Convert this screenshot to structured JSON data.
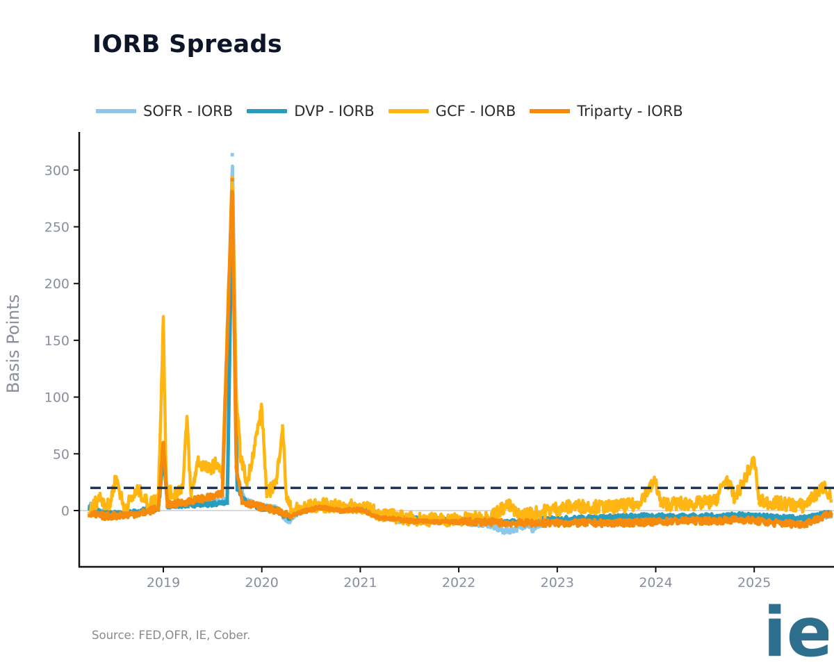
{
  "title": "IORB Spreads",
  "source": "Source: FED,OFR, IE, Cober.",
  "colors": {
    "sofr": "#8ec8e8",
    "dvp": "#2a9dbd",
    "gcf": "#ffb612",
    "triparty": "#f58a0c",
    "threshold": "#1f3556",
    "zero": "#d9d9d9",
    "logo": "#2f6f8e"
  },
  "logo": {
    "text": "ie"
  },
  "legend": [
    {
      "label": "SOFR - IORB",
      "key": "sofr"
    },
    {
      "label": "DVP - IORB",
      "key": "dvp"
    },
    {
      "label": "GCF - IORB",
      "key": "gcf"
    },
    {
      "label": "Triparty - IORB",
      "key": "triparty"
    }
  ],
  "chart_data": {
    "type": "line",
    "title": "IORB Spreads",
    "xlabel": "",
    "ylabel": "Basis Points",
    "xlim": [
      2018.15,
      2025.78
    ],
    "ylim": [
      -50,
      335
    ],
    "yticks": [
      0,
      50,
      100,
      150,
      200,
      250,
      300
    ],
    "xticks": [
      2019,
      2020,
      2021,
      2022,
      2023,
      2024,
      2025
    ],
    "threshold": 20,
    "grid": false,
    "legend_position": "top",
    "series": [
      {
        "name": "SOFR - IORB",
        "key": "sofr",
        "points": [
          [
            2018.25,
            5
          ],
          [
            2018.4,
            -3
          ],
          [
            2018.6,
            -4
          ],
          [
            2018.8,
            -1
          ],
          [
            2018.95,
            3
          ],
          [
            2019.0,
            55
          ],
          [
            2019.05,
            5
          ],
          [
            2019.25,
            6
          ],
          [
            2019.5,
            7
          ],
          [
            2019.65,
            10
          ],
          [
            2019.7,
            315
          ],
          [
            2019.75,
            25
          ],
          [
            2019.85,
            8
          ],
          [
            2020.0,
            3
          ],
          [
            2020.15,
            2
          ],
          [
            2020.22,
            -5
          ],
          [
            2020.28,
            -9
          ],
          [
            2020.35,
            -3
          ],
          [
            2020.5,
            4
          ],
          [
            2020.7,
            3
          ],
          [
            2020.9,
            2
          ],
          [
            2021.0,
            3
          ],
          [
            2021.1,
            -2
          ],
          [
            2021.2,
            -6
          ],
          [
            2021.4,
            -9
          ],
          [
            2021.7,
            -10
          ],
          [
            2022.0,
            -10
          ],
          [
            2022.3,
            -12
          ],
          [
            2022.45,
            -18
          ],
          [
            2022.55,
            -17
          ],
          [
            2022.7,
            -12
          ],
          [
            2022.75,
            -17
          ],
          [
            2022.9,
            -9
          ],
          [
            2023.2,
            -8
          ],
          [
            2023.5,
            -7
          ],
          [
            2023.8,
            -6
          ],
          [
            2024.0,
            -6
          ],
          [
            2024.3,
            -7
          ],
          [
            2024.6,
            -7
          ],
          [
            2024.9,
            -5
          ],
          [
            2025.2,
            -8
          ],
          [
            2025.5,
            -10
          ],
          [
            2025.78,
            -4
          ]
        ]
      },
      {
        "name": "DVP - IORB",
        "key": "dvp",
        "points": [
          [
            2018.25,
            3
          ],
          [
            2018.4,
            -2
          ],
          [
            2018.6,
            -3
          ],
          [
            2018.8,
            0
          ],
          [
            2018.95,
            2
          ],
          [
            2019.0,
            45
          ],
          [
            2019.05,
            4
          ],
          [
            2019.25,
            5
          ],
          [
            2019.5,
            6
          ],
          [
            2019.65,
            8
          ],
          [
            2019.7,
            280
          ],
          [
            2019.75,
            20
          ],
          [
            2019.85,
            6
          ],
          [
            2020.0,
            2
          ],
          [
            2020.15,
            1
          ],
          [
            2020.22,
            -4
          ],
          [
            2020.28,
            -6
          ],
          [
            2020.35,
            -2
          ],
          [
            2020.5,
            4
          ],
          [
            2020.7,
            3
          ],
          [
            2020.9,
            3
          ],
          [
            2021.0,
            3
          ],
          [
            2021.1,
            0
          ],
          [
            2021.2,
            -3
          ],
          [
            2021.4,
            -6
          ],
          [
            2021.7,
            -7
          ],
          [
            2022.0,
            -8
          ],
          [
            2022.3,
            -9
          ],
          [
            2022.45,
            -11
          ],
          [
            2022.55,
            -10
          ],
          [
            2022.7,
            -9
          ],
          [
            2022.9,
            -8
          ],
          [
            2023.2,
            -7
          ],
          [
            2023.5,
            -6
          ],
          [
            2023.8,
            -5
          ],
          [
            2024.0,
            -5
          ],
          [
            2024.3,
            -5
          ],
          [
            2024.6,
            -5
          ],
          [
            2024.9,
            -4
          ],
          [
            2025.2,
            -6
          ],
          [
            2025.5,
            -7
          ],
          [
            2025.78,
            -2
          ]
        ]
      },
      {
        "name": "GCF - IORB",
        "key": "gcf",
        "points": [
          [
            2018.25,
            -1
          ],
          [
            2018.35,
            12
          ],
          [
            2018.45,
            3
          ],
          [
            2018.52,
            30
          ],
          [
            2018.6,
            2
          ],
          [
            2018.75,
            18
          ],
          [
            2018.85,
            5
          ],
          [
            2018.95,
            12
          ],
          [
            2019.0,
            171
          ],
          [
            2019.03,
            18
          ],
          [
            2019.1,
            14
          ],
          [
            2019.2,
            22
          ],
          [
            2019.24,
            83
          ],
          [
            2019.28,
            12
          ],
          [
            2019.35,
            44
          ],
          [
            2019.45,
            36
          ],
          [
            2019.55,
            42
          ],
          [
            2019.6,
            30
          ],
          [
            2019.7,
            295
          ],
          [
            2019.74,
            106
          ],
          [
            2019.78,
            50
          ],
          [
            2019.85,
            24
          ],
          [
            2020.0,
            90
          ],
          [
            2020.05,
            14
          ],
          [
            2020.15,
            26
          ],
          [
            2020.21,
            76
          ],
          [
            2020.25,
            12
          ],
          [
            2020.3,
            0
          ],
          [
            2020.45,
            3
          ],
          [
            2020.6,
            5
          ],
          [
            2020.8,
            3
          ],
          [
            2021.0,
            4
          ],
          [
            2021.2,
            -3
          ],
          [
            2021.5,
            -7
          ],
          [
            2021.8,
            -8
          ],
          [
            2022.0,
            -8
          ],
          [
            2022.3,
            -6
          ],
          [
            2022.5,
            5
          ],
          [
            2022.6,
            -4
          ],
          [
            2022.8,
            -2
          ],
          [
            2023.0,
            2
          ],
          [
            2023.2,
            4
          ],
          [
            2023.5,
            3
          ],
          [
            2023.8,
            5
          ],
          [
            2024.0,
            26
          ],
          [
            2024.05,
            6
          ],
          [
            2024.4,
            6
          ],
          [
            2024.6,
            8
          ],
          [
            2024.72,
            29
          ],
          [
            2024.8,
            10
          ],
          [
            2025.0,
            45
          ],
          [
            2025.05,
            8
          ],
          [
            2025.3,
            6
          ],
          [
            2025.5,
            4
          ],
          [
            2025.72,
            22
          ],
          [
            2025.78,
            10
          ]
        ]
      },
      {
        "name": "Triparty - IORB",
        "key": "triparty",
        "points": [
          [
            2018.25,
            -3
          ],
          [
            2018.4,
            -5
          ],
          [
            2018.6,
            -4
          ],
          [
            2018.8,
            -2
          ],
          [
            2018.95,
            2
          ],
          [
            2019.0,
            60
          ],
          [
            2019.04,
            5
          ],
          [
            2019.2,
            7
          ],
          [
            2019.35,
            10
          ],
          [
            2019.5,
            12
          ],
          [
            2019.6,
            15
          ],
          [
            2019.7,
            293
          ],
          [
            2019.74,
            40
          ],
          [
            2019.8,
            8
          ],
          [
            2020.0,
            3
          ],
          [
            2020.15,
            0
          ],
          [
            2020.22,
            -3
          ],
          [
            2020.3,
            -5
          ],
          [
            2020.45,
            0
          ],
          [
            2020.6,
            3
          ],
          [
            2020.8,
            0
          ],
          [
            2021.0,
            1
          ],
          [
            2021.2,
            -6
          ],
          [
            2021.5,
            -9
          ],
          [
            2021.8,
            -10
          ],
          [
            2022.0,
            -10
          ],
          [
            2022.3,
            -10
          ],
          [
            2022.5,
            -11
          ],
          [
            2022.8,
            -11
          ],
          [
            2023.0,
            -11
          ],
          [
            2023.3,
            -11
          ],
          [
            2023.6,
            -11
          ],
          [
            2024.0,
            -10
          ],
          [
            2024.3,
            -9
          ],
          [
            2024.6,
            -9
          ],
          [
            2024.9,
            -8
          ],
          [
            2025.2,
            -11
          ],
          [
            2025.5,
            -12
          ],
          [
            2025.78,
            -3
          ]
        ]
      }
    ]
  }
}
